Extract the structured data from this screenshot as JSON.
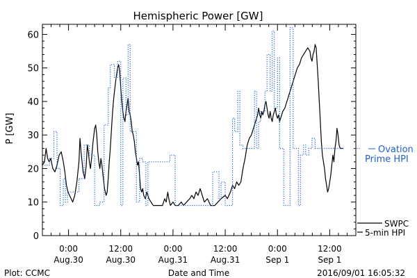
{
  "chart_data": {
    "type": "line",
    "title": "Hemispheric Power [GW]",
    "ylabel": "P [GW]",
    "xlabel": "Date and Time",
    "ylim": [
      0,
      63
    ],
    "yticks": [
      0,
      10,
      20,
      30,
      40,
      50,
      60
    ],
    "xlim": [
      -0.25,
      2.75
    ],
    "x_unit": "days from 2016-08-30 00:00 UT",
    "xticks": [
      {
        "x": 0.0,
        "time": "0:00",
        "date": "Aug.30"
      },
      {
        "x": 0.5,
        "time": "12:00",
        "date": "Aug.30"
      },
      {
        "x": 1.0,
        "time": "0:00",
        "date": "Aug.31"
      },
      {
        "x": 1.5,
        "time": "12:00",
        "date": "Aug.31"
      },
      {
        "x": 2.0,
        "time": "0:00",
        "date": "Sep 1"
      },
      {
        "x": 2.5,
        "time": "12:00",
        "date": "Sep 1"
      }
    ],
    "grid": false,
    "series": [
      {
        "name": "SWPC 5-min HPI",
        "color": "#000000",
        "style": "solid",
        "points": [
          [
            -0.25,
            21
          ],
          [
            -0.23,
            22
          ],
          [
            -0.215,
            26
          ],
          [
            -0.2,
            23
          ],
          [
            -0.185,
            22
          ],
          [
            -0.17,
            23
          ],
          [
            -0.15,
            20
          ],
          [
            -0.13,
            19
          ],
          [
            -0.11,
            21
          ],
          [
            -0.09,
            24
          ],
          [
            -0.07,
            25
          ],
          [
            -0.05,
            22
          ],
          [
            -0.035,
            19
          ],
          [
            -0.02,
            15
          ],
          [
            -0.005,
            13
          ],
          [
            0.01,
            12
          ],
          [
            0.025,
            11
          ],
          [
            0.04,
            10
          ],
          [
            0.06,
            12
          ],
          [
            0.08,
            16
          ],
          [
            0.1,
            22
          ],
          [
            0.11,
            29
          ],
          [
            0.12,
            25
          ],
          [
            0.13,
            22
          ],
          [
            0.14,
            19
          ],
          [
            0.155,
            17
          ],
          [
            0.17,
            21
          ],
          [
            0.18,
            27
          ],
          [
            0.19,
            25
          ],
          [
            0.2,
            22
          ],
          [
            0.21,
            20
          ],
          [
            0.22,
            23
          ],
          [
            0.235,
            28
          ],
          [
            0.25,
            32
          ],
          [
            0.26,
            33
          ],
          [
            0.27,
            30
          ],
          [
            0.28,
            25
          ],
          [
            0.29,
            22
          ],
          [
            0.3,
            20
          ],
          [
            0.31,
            23
          ],
          [
            0.32,
            21
          ],
          [
            0.33,
            18
          ],
          [
            0.345,
            14
          ],
          [
            0.36,
            12
          ],
          [
            0.37,
            13
          ],
          [
            0.38,
            17
          ],
          [
            0.39,
            22
          ],
          [
            0.4,
            26
          ],
          [
            0.41,
            31
          ],
          [
            0.42,
            36
          ],
          [
            0.43,
            40
          ],
          [
            0.44,
            43
          ],
          [
            0.455,
            47
          ],
          [
            0.47,
            50
          ],
          [
            0.48,
            51
          ],
          [
            0.49,
            49
          ],
          [
            0.5,
            44
          ],
          [
            0.51,
            40
          ],
          [
            0.52,
            37
          ],
          [
            0.53,
            35
          ],
          [
            0.54,
            34
          ],
          [
            0.55,
            37
          ],
          [
            0.56,
            39
          ],
          [
            0.57,
            41
          ],
          [
            0.58,
            37
          ],
          [
            0.59,
            36
          ],
          [
            0.6,
            34
          ],
          [
            0.61,
            31
          ],
          [
            0.62,
            30
          ],
          [
            0.63,
            28
          ],
          [
            0.64,
            25
          ],
          [
            0.65,
            23
          ],
          [
            0.66,
            21
          ],
          [
            0.67,
            22
          ],
          [
            0.68,
            18
          ],
          [
            0.69,
            14
          ],
          [
            0.7,
            13
          ],
          [
            0.71,
            14
          ],
          [
            0.72,
            12
          ],
          [
            0.735,
            11
          ],
          [
            0.75,
            13
          ],
          [
            0.77,
            11
          ],
          [
            0.79,
            10
          ],
          [
            0.81,
            9
          ],
          [
            0.85,
            9
          ],
          [
            0.9,
            9
          ],
          [
            0.92,
            11
          ],
          [
            0.935,
            10
          ],
          [
            0.95,
            13
          ],
          [
            0.96,
            11
          ],
          [
            0.975,
            9
          ],
          [
            1.0,
            10
          ],
          [
            1.02,
            9
          ],
          [
            1.05,
            9
          ],
          [
            1.08,
            10
          ],
          [
            1.1,
            9
          ],
          [
            1.13,
            10
          ],
          [
            1.16,
            11
          ],
          [
            1.18,
            12
          ],
          [
            1.2,
            11
          ],
          [
            1.22,
            13
          ],
          [
            1.24,
            12
          ],
          [
            1.26,
            14
          ],
          [
            1.28,
            12
          ],
          [
            1.3,
            10
          ],
          [
            1.33,
            11
          ],
          [
            1.36,
            9
          ],
          [
            1.4,
            9
          ],
          [
            1.43,
            10
          ],
          [
            1.46,
            11
          ],
          [
            1.5,
            12
          ],
          [
            1.52,
            11
          ],
          [
            1.55,
            13
          ],
          [
            1.57,
            15
          ],
          [
            1.59,
            14
          ],
          [
            1.61,
            16
          ],
          [
            1.63,
            15
          ],
          [
            1.65,
            16
          ],
          [
            1.67,
            20
          ],
          [
            1.69,
            23
          ],
          [
            1.71,
            27
          ],
          [
            1.73,
            29
          ],
          [
            1.75,
            30
          ],
          [
            1.77,
            32
          ],
          [
            1.79,
            34
          ],
          [
            1.81,
            36
          ],
          [
            1.82,
            38
          ],
          [
            1.83,
            36
          ],
          [
            1.84,
            35
          ],
          [
            1.85,
            37
          ],
          [
            1.86,
            36
          ],
          [
            1.87,
            37
          ],
          [
            1.88,
            39
          ],
          [
            1.89,
            40
          ],
          [
            1.9,
            38
          ],
          [
            1.91,
            36
          ],
          [
            1.92,
            35
          ],
          [
            1.93,
            37
          ],
          [
            1.94,
            35
          ],
          [
            1.95,
            34
          ],
          [
            1.96,
            36
          ],
          [
            1.97,
            37
          ],
          [
            1.98,
            38
          ],
          [
            1.99,
            36
          ],
          [
            2.0,
            35
          ],
          [
            2.01,
            36
          ],
          [
            2.02,
            34
          ],
          [
            2.03,
            35
          ],
          [
            2.04,
            36
          ],
          [
            2.05,
            37
          ],
          [
            2.07,
            38
          ],
          [
            2.09,
            40
          ],
          [
            2.11,
            42
          ],
          [
            2.13,
            44
          ],
          [
            2.15,
            46
          ],
          [
            2.17,
            48
          ],
          [
            2.19,
            50
          ],
          [
            2.21,
            51
          ],
          [
            2.23,
            53
          ],
          [
            2.25,
            54
          ],
          [
            2.27,
            55
          ],
          [
            2.29,
            56
          ],
          [
            2.31,
            55
          ],
          [
            2.32,
            53
          ],
          [
            2.33,
            52
          ],
          [
            2.34,
            54
          ],
          [
            2.35,
            55
          ],
          [
            2.36,
            57
          ],
          [
            2.37,
            56
          ],
          [
            2.38,
            51
          ],
          [
            2.39,
            46
          ],
          [
            2.4,
            40
          ],
          [
            2.41,
            34
          ],
          [
            2.42,
            28
          ],
          [
            2.43,
            24
          ],
          [
            2.44,
            22
          ],
          [
            2.45,
            20
          ],
          [
            2.46,
            17
          ],
          [
            2.47,
            15
          ],
          [
            2.48,
            13
          ],
          [
            2.49,
            14
          ],
          [
            2.5,
            16
          ],
          [
            2.51,
            18
          ],
          [
            2.52,
            21
          ],
          [
            2.53,
            24
          ],
          [
            2.54,
            22
          ],
          [
            2.55,
            26
          ],
          [
            2.56,
            28
          ],
          [
            2.57,
            32
          ],
          [
            2.58,
            30
          ],
          [
            2.59,
            27
          ],
          [
            2.6,
            26
          ],
          [
            2.62,
            26
          ],
          [
            2.63,
            26
          ]
        ]
      },
      {
        "name": "Ovation Prime HPI",
        "color": "#1f5fd6",
        "style": "dotted-step",
        "points": [
          [
            -0.25,
            21
          ],
          [
            -0.18,
            23
          ],
          [
            -0.14,
            31
          ],
          [
            -0.11,
            20
          ],
          [
            -0.08,
            9
          ],
          [
            -0.05,
            17
          ],
          [
            -0.03,
            10
          ],
          [
            -0.01,
            13
          ],
          [
            0.1,
            17
          ],
          [
            0.15,
            27
          ],
          [
            0.2,
            24
          ],
          [
            0.25,
            9
          ],
          [
            0.3,
            10
          ],
          [
            0.34,
            33
          ],
          [
            0.38,
            44
          ],
          [
            0.4,
            51
          ],
          [
            0.44,
            47
          ],
          [
            0.47,
            52
          ],
          [
            0.5,
            9
          ],
          [
            0.52,
            47
          ],
          [
            0.55,
            36
          ],
          [
            0.57,
            57
          ],
          [
            0.59,
            31
          ],
          [
            0.62,
            31
          ],
          [
            0.65,
            10
          ],
          [
            0.68,
            23
          ],
          [
            0.71,
            22
          ],
          [
            0.74,
            9
          ],
          [
            0.76,
            22
          ],
          [
            0.79,
            22
          ],
          [
            0.84,
            22
          ],
          [
            0.9,
            22
          ],
          [
            0.93,
            22
          ],
          [
            0.97,
            24
          ],
          [
            1.0,
            24
          ],
          [
            1.02,
            9
          ],
          [
            1.05,
            9
          ],
          [
            1.09,
            9
          ],
          [
            1.15,
            9
          ],
          [
            1.2,
            9
          ],
          [
            1.26,
            9
          ],
          [
            1.3,
            9
          ],
          [
            1.35,
            9
          ],
          [
            1.38,
            19
          ],
          [
            1.42,
            19
          ],
          [
            1.44,
            11
          ],
          [
            1.46,
            16
          ],
          [
            1.5,
            9
          ],
          [
            1.53,
            9
          ],
          [
            1.57,
            35
          ],
          [
            1.59,
            31
          ],
          [
            1.62,
            43
          ],
          [
            1.64,
            27
          ],
          [
            1.67,
            26
          ],
          [
            1.72,
            26
          ],
          [
            1.75,
            26
          ],
          [
            1.78,
            43
          ],
          [
            1.8,
            26
          ],
          [
            1.82,
            34
          ],
          [
            1.84,
            37
          ],
          [
            1.88,
            43
          ],
          [
            1.9,
            54
          ],
          [
            1.93,
            43
          ],
          [
            1.95,
            61
          ],
          [
            1.97,
            38
          ],
          [
            2.0,
            53
          ],
          [
            2.02,
            26
          ],
          [
            2.06,
            9
          ],
          [
            2.09,
            9
          ],
          [
            2.12,
            62
          ],
          [
            2.15,
            26
          ],
          [
            2.18,
            26
          ],
          [
            2.2,
            9
          ],
          [
            2.22,
            24
          ],
          [
            2.25,
            27
          ],
          [
            2.27,
            24
          ],
          [
            2.3,
            26
          ],
          [
            2.33,
            29
          ],
          [
            2.36,
            26
          ],
          [
            2.38,
            26
          ],
          [
            2.4,
            26
          ],
          [
            2.45,
            26
          ],
          [
            2.5,
            26
          ],
          [
            2.55,
            26
          ],
          [
            2.6,
            26
          ],
          [
            2.63,
            26
          ]
        ]
      }
    ],
    "legend": {
      "placement": "right",
      "ovation_line1": "Ovation",
      "ovation_line2": "Prime HPI",
      "swpc_line1": "SWPC",
      "swpc_line2": "5-min HPI"
    }
  },
  "footer": {
    "left": "Plot: CCMC",
    "center": "Date and Time",
    "right": "2016/09/01 16:05:32"
  }
}
